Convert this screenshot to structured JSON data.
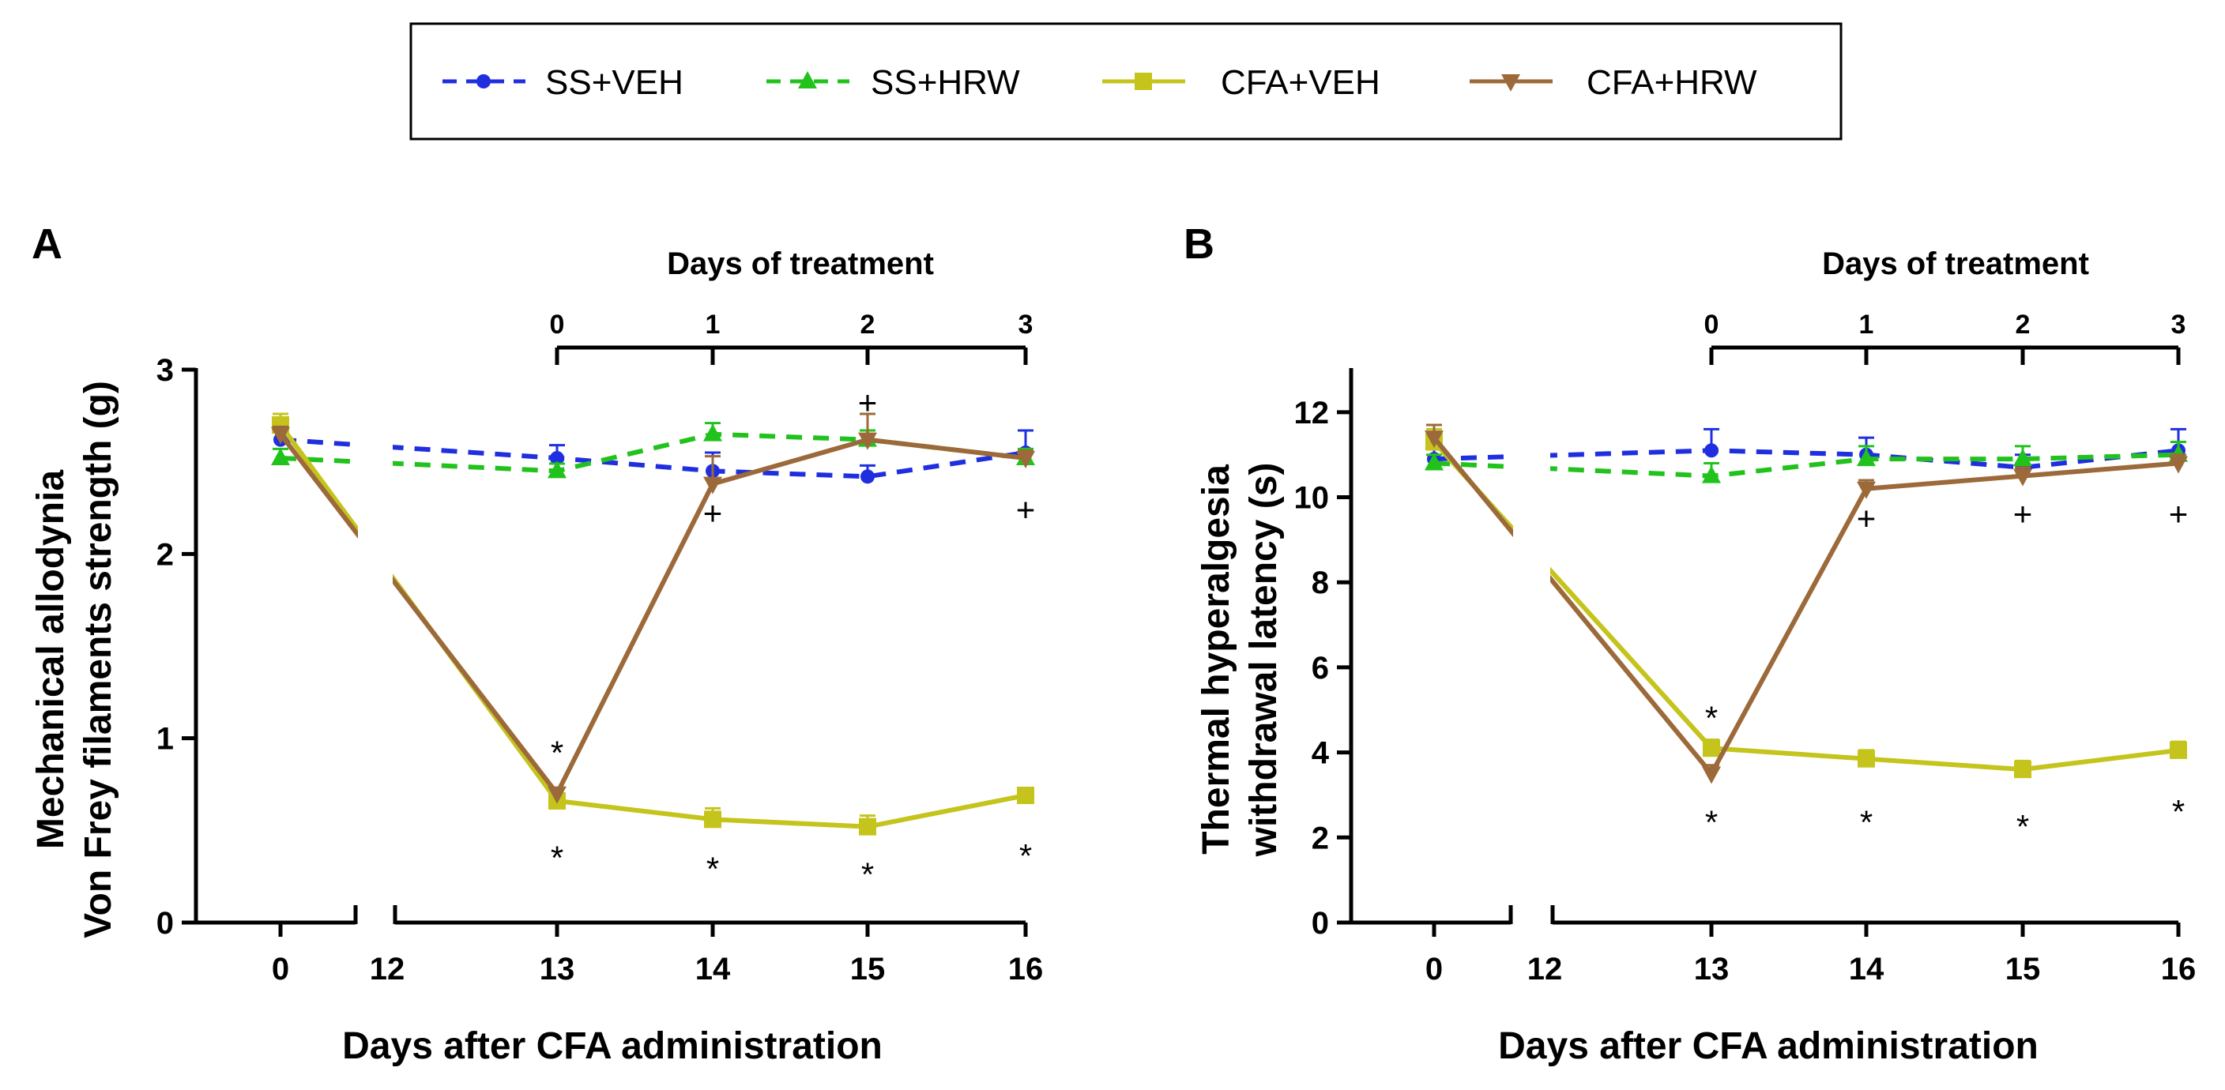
{
  "legend": {
    "entries": [
      {
        "name": "SS+VEH",
        "color": "#1f2fe0",
        "marker": "circle",
        "dash": true
      },
      {
        "name": "SS+HRW",
        "color": "#22c21d",
        "marker": "triangle-up",
        "dash": true
      },
      {
        "name": "CFA+VEH",
        "color": "#c4c41c",
        "marker": "square",
        "dash": false
      },
      {
        "name": "CFA+HRW",
        "color": "#9c6a3a",
        "marker": "triangle-down",
        "dash": false
      }
    ]
  },
  "chart_data": [
    {
      "type": "line",
      "panel": "A",
      "xlabel": "Days after CFA administration",
      "ylabel": [
        "Mechanical allodynia",
        "Von Frey filaments strength (g)"
      ],
      "ylim": [
        0,
        3
      ],
      "yticks": [
        0,
        1,
        2,
        3
      ],
      "xticks": [
        "0",
        "12",
        "13",
        "14",
        "15",
        "16"
      ],
      "axis_break": "between 0 and 12",
      "treatment_axis": {
        "title": "Days of treatment",
        "ticks": [
          "0",
          "1",
          "2",
          "3"
        ],
        "span_days": [
          13,
          16
        ]
      },
      "series": [
        {
          "name": "SS+VEH",
          "x": [
            0,
            13,
            14,
            15,
            16
          ],
          "values": [
            2.62,
            2.52,
            2.45,
            2.42,
            2.55
          ],
          "errors": [
            0.12,
            0.07,
            0.1,
            0.06,
            0.12
          ]
        },
        {
          "name": "SS+HRW",
          "x": [
            0,
            13,
            14,
            15,
            16
          ],
          "values": [
            2.52,
            2.45,
            2.65,
            2.62,
            2.52
          ],
          "errors": [
            0.05,
            0.04,
            0.06,
            0.05,
            0.05
          ]
        },
        {
          "name": "CFA+VEH",
          "x": [
            0,
            13,
            14,
            15,
            16
          ],
          "values": [
            2.7,
            0.66,
            0.56,
            0.52,
            0.69
          ],
          "errors": [
            0.06,
            0.03,
            0.06,
            0.06,
            0.03
          ]
        },
        {
          "name": "CFA+HRW",
          "x": [
            0,
            13,
            14,
            15,
            16
          ],
          "values": [
            2.65,
            0.7,
            2.38,
            2.62,
            2.52
          ],
          "errors": [
            0.04,
            0.03,
            0.15,
            0.14,
            0.04
          ]
        }
      ],
      "annotations": [
        {
          "text": "*",
          "x": 13,
          "y": 0.92
        },
        {
          "text": "*",
          "x": 13,
          "y": 0.35
        },
        {
          "text": "*",
          "x": 14,
          "y": 0.29
        },
        {
          "text": "*",
          "x": 15,
          "y": 0.26
        },
        {
          "text": "*",
          "x": 16,
          "y": 0.36
        },
        {
          "text": "+",
          "x": 15,
          "y": 2.82
        },
        {
          "text": "+",
          "x": 14,
          "y": 2.22
        },
        {
          "text": "+",
          "x": 16,
          "y": 2.24
        }
      ]
    },
    {
      "type": "line",
      "panel": "B",
      "xlabel": "Days after CFA administration",
      "ylabel": [
        "Thermal hyperalgesia",
        "withdrawal latency (s)"
      ],
      "ylim": [
        0,
        13
      ],
      "yticks": [
        0,
        2,
        4,
        6,
        8,
        10,
        12
      ],
      "xticks": [
        "0",
        "12",
        "13",
        "14",
        "15",
        "16"
      ],
      "axis_break": "between 0 and 12",
      "treatment_axis": {
        "title": "Days of treatment",
        "ticks": [
          "0",
          "1",
          "2",
          "3"
        ],
        "span_days": [
          13,
          16
        ]
      },
      "series": [
        {
          "name": "SS+VEH",
          "x": [
            0,
            13,
            14,
            15,
            16
          ],
          "values": [
            10.9,
            11.1,
            11.0,
            10.7,
            11.1
          ],
          "errors": [
            0.3,
            0.5,
            0.4,
            0.3,
            0.5
          ]
        },
        {
          "name": "SS+HRW",
          "x": [
            0,
            13,
            14,
            15,
            16
          ],
          "values": [
            10.8,
            10.5,
            10.9,
            10.9,
            11.0
          ],
          "errors": [
            0.2,
            0.3,
            0.3,
            0.3,
            0.3
          ]
        },
        {
          "name": "CFA+VEH",
          "x": [
            0,
            13,
            14,
            15,
            16
          ],
          "values": [
            11.3,
            4.1,
            3.85,
            3.6,
            4.05
          ],
          "errors": [
            0.3,
            0.2,
            0.2,
            0.2,
            0.2
          ]
        },
        {
          "name": "CFA+HRW",
          "x": [
            0,
            13,
            14,
            15,
            16
          ],
          "values": [
            11.4,
            3.5,
            10.2,
            10.5,
            10.8
          ],
          "errors": [
            0.3,
            0.2,
            0.2,
            0.2,
            0.2
          ]
        }
      ],
      "annotations": [
        {
          "text": "*",
          "x": 13,
          "y": 4.8
        },
        {
          "text": "*",
          "x": 13,
          "y": 2.35
        },
        {
          "text": "*",
          "x": 14,
          "y": 2.35
        },
        {
          "text": "*",
          "x": 15,
          "y": 2.25
        },
        {
          "text": "*",
          "x": 16,
          "y": 2.6
        },
        {
          "text": "+",
          "x": 14,
          "y": 9.5
        },
        {
          "text": "+",
          "x": 15,
          "y": 9.6
        },
        {
          "text": "+",
          "x": 16,
          "y": 9.6
        }
      ]
    }
  ]
}
